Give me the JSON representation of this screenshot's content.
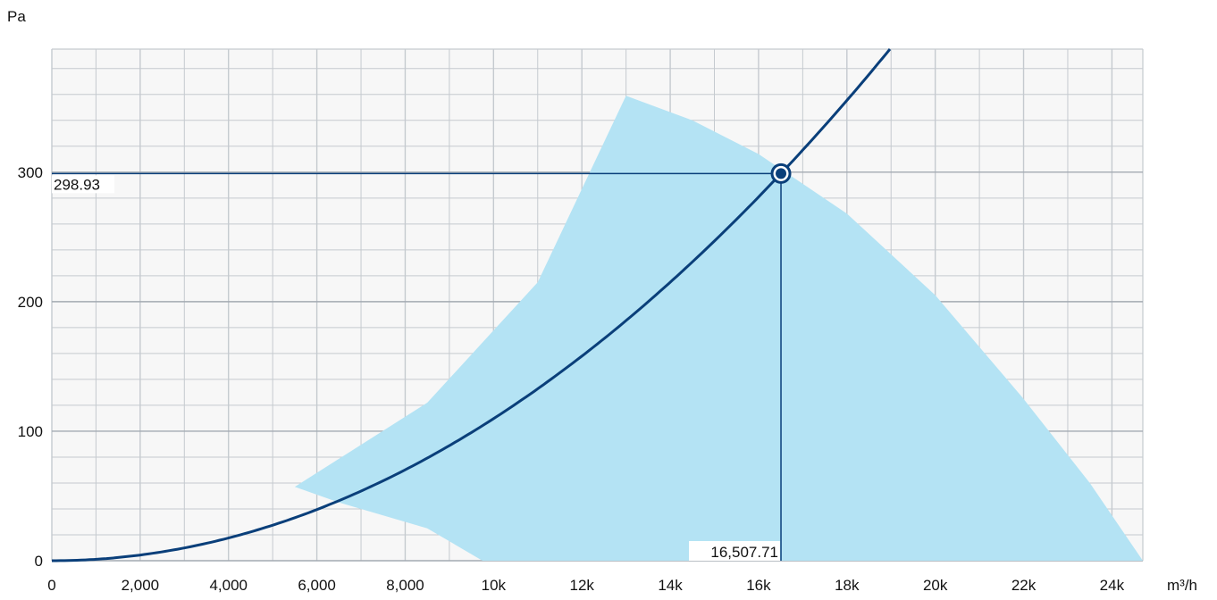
{
  "chart_data": {
    "type": "line",
    "xlabel": "m³/h",
    "ylabel": "Pa",
    "xlim": [
      0,
      24700
    ],
    "ylim": [
      0,
      395
    ],
    "x_ticks": [
      {
        "value": 0,
        "label": "0"
      },
      {
        "value": 2000,
        "label": "2,000"
      },
      {
        "value": 4000,
        "label": "4,000"
      },
      {
        "value": 6000,
        "label": "6,000"
      },
      {
        "value": 8000,
        "label": "8,000"
      },
      {
        "value": 10000,
        "label": "10k"
      },
      {
        "value": 12000,
        "label": "12k"
      },
      {
        "value": 14000,
        "label": "14k"
      },
      {
        "value": 16000,
        "label": "16k"
      },
      {
        "value": 18000,
        "label": "18k"
      },
      {
        "value": 20000,
        "label": "20k"
      },
      {
        "value": 22000,
        "label": "22k"
      },
      {
        "value": 24000,
        "label": "24k"
      }
    ],
    "y_ticks": [
      {
        "value": 0,
        "label": "0"
      },
      {
        "value": 100,
        "label": "100"
      },
      {
        "value": 200,
        "label": "200"
      },
      {
        "value": 300,
        "label": "300"
      }
    ],
    "grid": true,
    "operating_range": [
      [
        5500,
        57
      ],
      [
        8500,
        122
      ],
      [
        11000,
        215
      ],
      [
        13000,
        359
      ],
      [
        14500,
        340
      ],
      [
        16000,
        314
      ],
      [
        18000,
        268
      ],
      [
        20000,
        205
      ],
      [
        22000,
        125
      ],
      [
        23500,
        60
      ],
      [
        24700,
        0
      ],
      [
        9750,
        0
      ],
      [
        8500,
        25
      ],
      [
        6500,
        45
      ]
    ],
    "system_curve": {
      "coefficient": 1.097e-06,
      "exponent": 2,
      "x_max": 19000
    },
    "operating_point": {
      "x": 16507.71,
      "y": 298.93,
      "x_label": "16,507.71",
      "y_label": "298.93"
    },
    "colors": {
      "curve": "#0a3f7a",
      "range_fill": "#b4e3f4",
      "grid": "#c5cacf",
      "plot_bg": "#f7f7f7"
    }
  }
}
